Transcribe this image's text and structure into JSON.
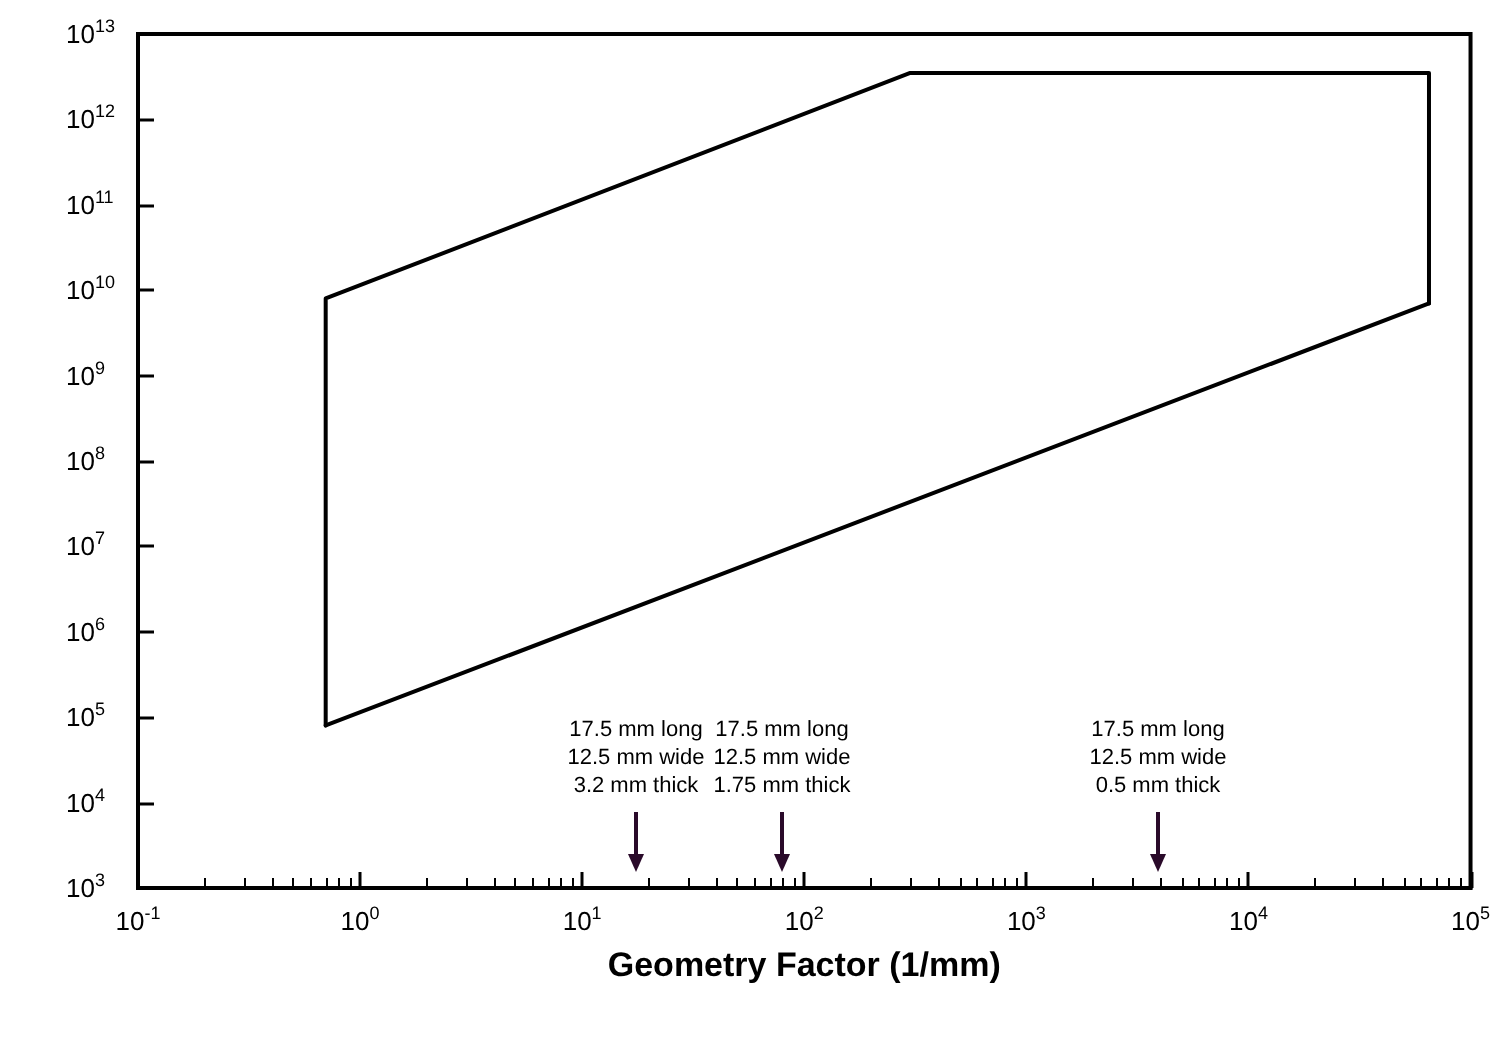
{
  "chart_data": {
    "type": "line",
    "xlabel": "Geometry Factor (1/mm)",
    "series": [
      {
        "color": "#000000",
        "x": [
          0.7,
          0.7,
          300,
          65000,
          65000
        ],
        "values": [
          80000.0,
          8000000000.0,
          3500000000000.0,
          3500000000000.0,
          7000000000.0
        ]
      },
      {
        "color": "#000000",
        "x": [
          0.7,
          65000
        ],
        "values": [
          80000.0,
          7000000000.0
        ]
      }
    ],
    "log": "xy",
    "xlim": [
      0.1,
      100000
    ],
    "ylim": [
      1000,
      10000000000000.0
    ],
    "xticks": [
      {
        "value": 0.1,
        "label": "10$^{-1}$"
      },
      {
        "value": 1,
        "label": "10$^{0}$"
      },
      {
        "value": 10,
        "label": "10$^{1}$"
      },
      {
        "value": 100,
        "label": "10$^{2}$"
      },
      {
        "value": 1000,
        "label": "10$^{3}$"
      },
      {
        "value": 10000,
        "label": "10$^{4}$"
      },
      {
        "value": 100000,
        "label": "10$^{5}$"
      }
    ],
    "yticks": [
      {
        "value": 1000,
        "label": "10$^{3}$"
      },
      {
        "value": 10000,
        "label": "10$^{4}$"
      },
      {
        "value": 100000,
        "label": "10$^{5}$"
      },
      {
        "value": 1000000.0,
        "label": "10$^{6}$"
      },
      {
        "value": 10000000.0,
        "label": "10$^{7}$"
      },
      {
        "value": 100000000.0,
        "label": "10$^{8}$"
      },
      {
        "value": 1000000000.0,
        "label": "10$^{9}$"
      },
      {
        "value": 10000000000.0,
        "label": "10$^{10}$"
      },
      {
        "value": 100000000000.0,
        "label": "10$^{11}$"
      },
      {
        "value": 1000000000000.0,
        "label": "10$^{12}$"
      },
      {
        "value": 10000000000000.0,
        "label": "10$^{13}$"
      }
    ],
    "annotations": [
      "17.5 mm long\n12.5 mm wide\n3.2 mm thick",
      "17.5 mm long\n12.5 mm wide\n1.75 mm thick",
      "17.5 mm long\n12.5 mm wide\n0.5 mm thick"
    ],
    "grid": false,
    "marker": "none",
    "line_style": "solid"
  }
}
